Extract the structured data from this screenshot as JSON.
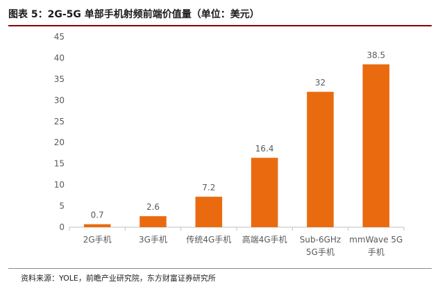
{
  "figure": {
    "title": "图表 5：2G-5G 单部手机射频前端价值量（单位：美元）",
    "source": "资料来源：YOLE，前瞻产业研究院，东方财富证券研究所"
  },
  "colors": {
    "bar": "#ea6b0f",
    "axis": "#bfbfbf",
    "rule_top": "#8c0000",
    "text": "#595959"
  },
  "chart_data": {
    "type": "bar",
    "categories": [
      "2G手机",
      "3G手机",
      "传统4G手机",
      "高端4G手机",
      "Sub-6GHz 5G手机",
      "mmWave 5G 手机"
    ],
    "category_lines": [
      [
        "2G手机"
      ],
      [
        "3G手机"
      ],
      [
        "传统4G手机"
      ],
      [
        "高端4G手机"
      ],
      [
        "Sub-6GHz",
        "5G手机"
      ],
      [
        "mmWave 5G",
        "手机"
      ]
    ],
    "values": [
      0.7,
      2.6,
      7.2,
      16.4,
      32,
      38.5
    ],
    "value_labels": [
      "0.7",
      "2.6",
      "7.2",
      "16.4",
      "32",
      "38.5"
    ],
    "ylim": [
      0,
      45
    ],
    "yticks": [
      0,
      5,
      10,
      15,
      20,
      25,
      30,
      35,
      40,
      45
    ],
    "grid": false,
    "legend": "none",
    "xlabel": "",
    "ylabel": ""
  }
}
